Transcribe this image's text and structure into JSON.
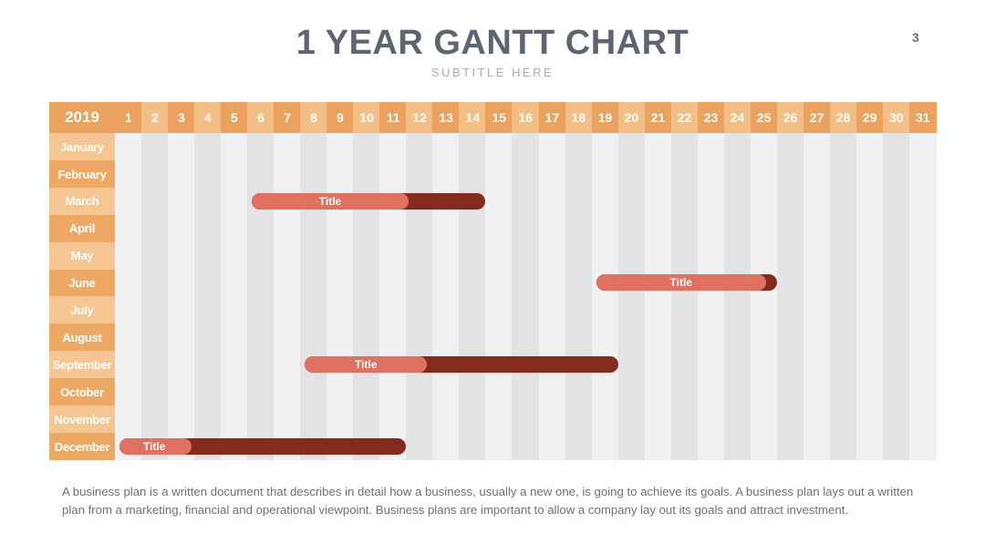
{
  "header": {
    "title": "1 YEAR GANTT CHART",
    "subtitle": "SUBTITLE HERE",
    "page_number": "3"
  },
  "gantt": {
    "year": "2019",
    "days": [
      "1",
      "2",
      "3",
      "4",
      "5",
      "6",
      "7",
      "8",
      "9",
      "10",
      "11",
      "12",
      "13",
      "14",
      "15",
      "16",
      "17",
      "18",
      "19",
      "20",
      "21",
      "22",
      "23",
      "24",
      "25",
      "26",
      "27",
      "28",
      "29",
      "30",
      "31"
    ],
    "months": [
      "January",
      "February",
      "March",
      "April",
      "May",
      "June",
      "July",
      "August",
      "September",
      "October",
      "November",
      "December"
    ],
    "tasks": [
      {
        "label": "Title",
        "month": "March",
        "start_day": 6,
        "end_day": 14,
        "progress": 0.67
      },
      {
        "label": "Title",
        "month": "June",
        "start_day": 19,
        "end_day": 25,
        "progress": 0.94
      },
      {
        "label": "Title",
        "month": "September",
        "start_day": 8,
        "end_day": 19,
        "progress": 0.39
      },
      {
        "label": "Title",
        "month": "December",
        "start_day": 1,
        "end_day": 11,
        "progress": 0.25
      }
    ]
  },
  "description": "A business plan is a written document that describes in detail how a business, usually a new one, is going to achieve its goals. A business plan lays out a written plan from a marketing, financial and operational viewpoint. Business plans are important to allow a company lay out its goals and attract investment.",
  "colors": {
    "header_dark": "#eba25f",
    "header_light": "#f3bf87",
    "month_dark": "#eda964",
    "month_light": "#f5c692",
    "stripe_light": "#f1f1f3",
    "stripe_dark": "#e3e3e5",
    "bar_progress": "#e07060",
    "bar_remaining": "#842b1e"
  }
}
